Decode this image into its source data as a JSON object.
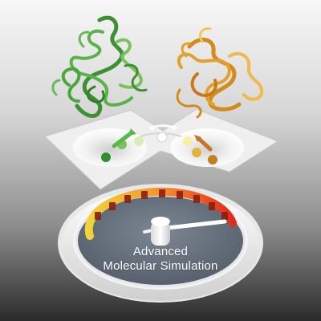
{
  "image": {
    "background": "gray vertical gradient, light at top, dark at bottom",
    "caption_line_1": "Advanced",
    "caption_line_2": "Molecular Simulation"
  },
  "colors": {
    "left_protein": "#4aa63b",
    "right_protein": "#e2a12c",
    "gauge_red": "#e22b1c",
    "gauge_yellow": "#f1d33b"
  },
  "icons": [
    "protein-structure-green",
    "protein-structure-orange",
    "energy-landscape-plane",
    "arrow-green",
    "arrow-orange",
    "exchange-arrows-icon",
    "gauge-dial",
    "needle"
  ]
}
